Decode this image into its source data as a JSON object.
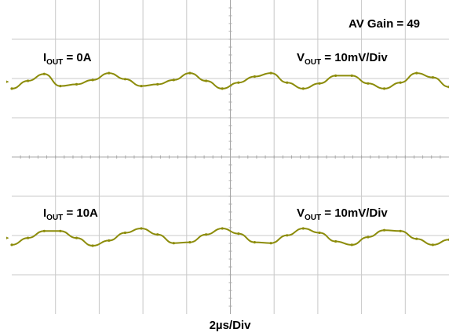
{
  "chart_data": [
    {
      "type": "line",
      "series": [
        {
          "values": [
            -0.9,
            0.0,
            0.8,
            -0.6,
            -0.4,
            0.1,
            0.9,
            0.2,
            -0.6,
            -0.4,
            0.1,
            0.9,
            0.0,
            -0.9,
            -0.2,
            0.5,
            0.9,
            -0.2,
            -0.9,
            -0.3,
            0.6,
            0.6,
            -0.3,
            -0.9,
            -0.2,
            0.9,
            0.4,
            -0.7
          ]
        }
      ],
      "annotations": {
        "iout_sym": "I",
        "iout_sub": "OUT",
        "iout_val": " = 0A",
        "vout_sym": "V",
        "vout_sub": "OUT",
        "vout_val": " = 10mV/Div"
      }
    },
    {
      "type": "line",
      "series": [
        {
          "values": [
            -0.9,
            -0.1,
            0.7,
            0.7,
            -0.1,
            -1.0,
            -0.4,
            0.5,
            1.0,
            0.3,
            -0.7,
            -0.6,
            0.3,
            1.0,
            0.4,
            -0.6,
            -0.7,
            0.2,
            1.0,
            0.5,
            -0.5,
            -0.9,
            0.0,
            0.8,
            0.7,
            -0.2,
            -0.9,
            -0.3
          ]
        }
      ],
      "annotations": {
        "iout_sym": "I",
        "iout_sub": "OUT",
        "iout_val": " = 10A",
        "vout_sym": "V",
        "vout_sub": "OUT",
        "vout_val": " = 10mV/Div"
      }
    }
  ],
  "gain_label": "AV Gain = 49",
  "time_base": "2µs/Div",
  "trace_color": "#8c8c0a",
  "grid_color": "#c9c9c9"
}
